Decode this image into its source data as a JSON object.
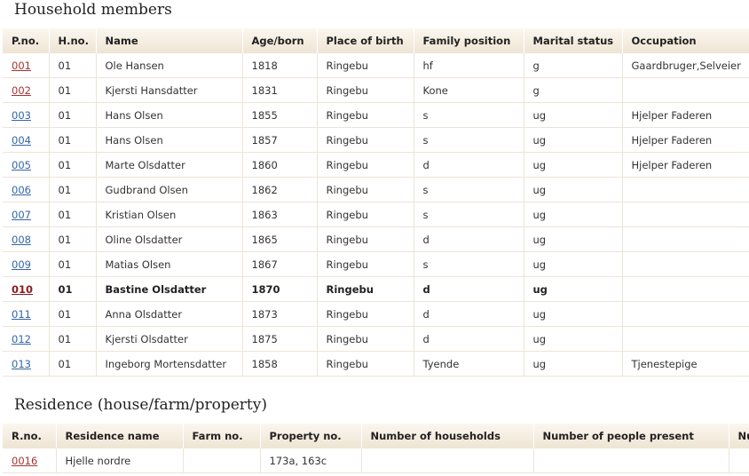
{
  "household": {
    "title": "Household members",
    "headers": [
      "P.no.",
      "H.no.",
      "Name",
      "Age/born",
      "Place of birth",
      "Family position",
      "Marital status",
      "Occupation"
    ],
    "rows": [
      {
        "pno": "001",
        "hno": "01",
        "name": "Ole Hansen",
        "born": "1818",
        "place": "Ringebu",
        "position": "hf",
        "marital": "g",
        "occupation": "Gaardbruger,Selveier"
      },
      {
        "pno": "002",
        "hno": "01",
        "name": "Kjersti Hansdatter",
        "born": "1831",
        "place": "Ringebu",
        "position": "Kone",
        "marital": "g",
        "occupation": ""
      },
      {
        "pno": "003",
        "hno": "01",
        "name": "Hans Olsen",
        "born": "1855",
        "place": "Ringebu",
        "position": "s",
        "marital": "ug",
        "occupation": "Hjelper Faderen"
      },
      {
        "pno": "004",
        "hno": "01",
        "name": "Hans Olsen",
        "born": "1857",
        "place": "Ringebu",
        "position": "s",
        "marital": "ug",
        "occupation": "Hjelper Faderen"
      },
      {
        "pno": "005",
        "hno": "01",
        "name": "Marte Olsdatter",
        "born": "1860",
        "place": "Ringebu",
        "position": "d",
        "marital": "ug",
        "occupation": "Hjelper Faderen"
      },
      {
        "pno": "006",
        "hno": "01",
        "name": "Gudbrand Olsen",
        "born": "1862",
        "place": "Ringebu",
        "position": "s",
        "marital": "ug",
        "occupation": ""
      },
      {
        "pno": "007",
        "hno": "01",
        "name": "Kristian Olsen",
        "born": "1863",
        "place": "Ringebu",
        "position": "s",
        "marital": "ug",
        "occupation": ""
      },
      {
        "pno": "008",
        "hno": "01",
        "name": "Oline Olsdatter",
        "born": "1865",
        "place": "Ringebu",
        "position": "d",
        "marital": "ug",
        "occupation": ""
      },
      {
        "pno": "009",
        "hno": "01",
        "name": "Matias Olsen",
        "born": "1867",
        "place": "Ringebu",
        "position": "s",
        "marital": "ug",
        "occupation": ""
      },
      {
        "pno": "010",
        "hno": "01",
        "name": "Bastine Olsdatter",
        "born": "1870",
        "place": "Ringebu",
        "position": "d",
        "marital": "ug",
        "occupation": ""
      },
      {
        "pno": "011",
        "hno": "01",
        "name": "Anna Olsdatter",
        "born": "1873",
        "place": "Ringebu",
        "position": "d",
        "marital": "ug",
        "occupation": ""
      },
      {
        "pno": "012",
        "hno": "01",
        "name": "Kjersti Olsdatter",
        "born": "1875",
        "place": "Ringebu",
        "position": "d",
        "marital": "ug",
        "occupation": ""
      },
      {
        "pno": "013",
        "hno": "01",
        "name": "Ingeborg Mortensdatter",
        "born": "1858",
        "place": "Ringebu",
        "position": "Tyende",
        "marital": "ug",
        "occupation": "Tjenestepige"
      }
    ]
  },
  "residence": {
    "title": "Residence (house/farm/property)",
    "headers": [
      "R.no.",
      "Residence name",
      "Farm no.",
      "Property no.",
      "Number of households",
      "Number of people present",
      "Nu"
    ],
    "rows": [
      {
        "rno": "0016",
        "name": "Hjelle nordre",
        "farm": "",
        "property": "173a, 163c",
        "households": "",
        "present": "",
        "extra": ""
      }
    ]
  },
  "colors": {
    "link_visited": "#a83232",
    "link_default": "#3366a8",
    "header_bg_top": "#fbf7f0",
    "header_bg_bottom": "#efe4d3"
  }
}
